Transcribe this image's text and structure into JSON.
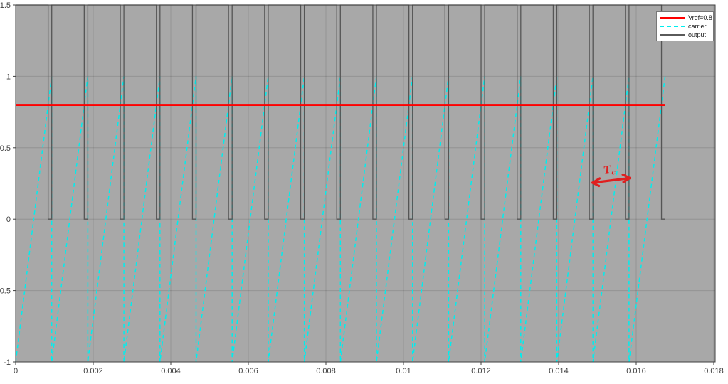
{
  "chart_data": {
    "type": "line",
    "title": "",
    "xlabel": "",
    "ylabel": "",
    "xlim": [
      0,
      0.018
    ],
    "ylim": [
      -1,
      1.5
    ],
    "grid": true,
    "background_color": "#a8a8a8",
    "grid_color": "rgba(40,40,40,0.16)",
    "axis_color": "#3f3f3f",
    "x_tick_labels": [
      "0",
      "0.002",
      "0.004",
      "0.006",
      "0.008",
      "0.01",
      "0.012",
      "0.014",
      "0.016",
      "0.018"
    ],
    "x_tick_values": [
      0,
      0.002,
      0.004,
      0.006,
      0.008,
      0.01,
      0.012,
      0.014,
      0.016,
      0.018
    ],
    "y_tick_labels": [
      "1.5",
      "1",
      "0.5",
      "0",
      "-0.5",
      "-1"
    ],
    "y_tick_values": [
      1.5,
      1,
      0.5,
      0,
      -0.5,
      -1
    ],
    "legend_position": "top-right",
    "legend": [
      {
        "label": "Vref=0.8",
        "color": "#ff0000",
        "line_style": "solid",
        "line_width": 3
      },
      {
        "label": "carrier",
        "color": "#00eeee",
        "line_style": "dashed",
        "line_width": 2
      },
      {
        "label": "output",
        "color": "#5a5a5a",
        "line_style": "solid",
        "line_width": 2
      }
    ],
    "series": {
      "vref": {
        "name": "Vref=0.8",
        "shape": "hline",
        "value": 0.8,
        "t_start": 0,
        "t_end": 0.016745,
        "color": "#ff0000",
        "width": 2.8
      },
      "carrier": {
        "name": "carrier",
        "shape": "sawtooth",
        "min": -1,
        "max": 1,
        "period": 0.00093028,
        "periods": 18,
        "t_start": 0,
        "color": "#00eeee",
        "width": 1.5,
        "dash": "5.5 4"
      },
      "output": {
        "name": "output",
        "shape": "pwm",
        "low": 0,
        "high": 1.5,
        "fall_fraction": 0.9,
        "period": 0.00093028,
        "periods": 18,
        "color": "#555555",
        "width": 1.3
      }
    },
    "annotation": {
      "label_main": "T",
      "label_sub": "c",
      "t_start": 0.014874,
      "t_end": 0.015837,
      "y": 0.27,
      "color": "#e01f1f"
    }
  }
}
